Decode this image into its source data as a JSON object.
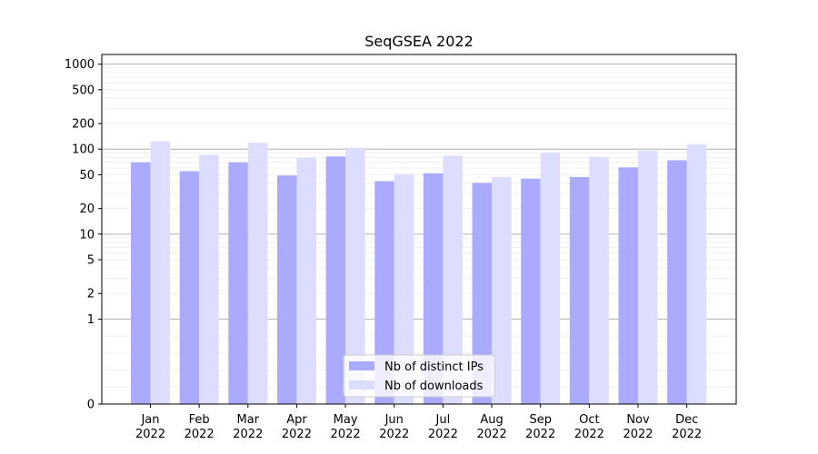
{
  "chart_data": {
    "type": "bar",
    "title": "SeqGSEA 2022",
    "xlabel": "",
    "ylabel": "",
    "scale": "symlog",
    "ylim": [
      0,
      1300
    ],
    "yticks": [
      0,
      1,
      2,
      5,
      10,
      20,
      50,
      100,
      200,
      500,
      1000
    ],
    "ytick_labels": [
      "0",
      "1",
      "2",
      "5",
      "10",
      "20",
      "50",
      "100",
      "200",
      "500",
      "1000"
    ],
    "grid": true,
    "legend_position": "bottom-center",
    "categories": [
      {
        "month": "Jan",
        "year": "2022"
      },
      {
        "month": "Feb",
        "year": "2022"
      },
      {
        "month": "Mar",
        "year": "2022"
      },
      {
        "month": "Apr",
        "year": "2022"
      },
      {
        "month": "May",
        "year": "2022"
      },
      {
        "month": "Jun",
        "year": "2022"
      },
      {
        "month": "Jul",
        "year": "2022"
      },
      {
        "month": "Aug",
        "year": "2022"
      },
      {
        "month": "Sep",
        "year": "2022"
      },
      {
        "month": "Oct",
        "year": "2022"
      },
      {
        "month": "Nov",
        "year": "2022"
      },
      {
        "month": "Dec",
        "year": "2022"
      }
    ],
    "series": [
      {
        "name": "Nb of distinct IPs",
        "color": "#aaaaff",
        "values": [
          70,
          55,
          70,
          49,
          82,
          42,
          52,
          40,
          45,
          47,
          61,
          74
        ]
      },
      {
        "name": "Nb of downloads",
        "color": "#ddddff",
        "values": [
          124,
          86,
          119,
          79,
          104,
          51,
          84,
          47,
          91,
          81,
          96,
          114
        ]
      }
    ]
  }
}
